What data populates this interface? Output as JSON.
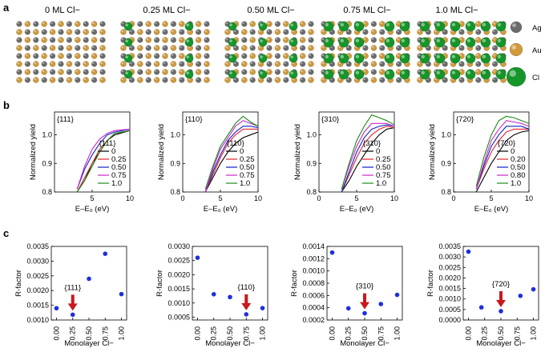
{
  "figure": {
    "panel_a_label": "a",
    "panel_b_label": "b",
    "panel_c_label": "c",
    "colors": {
      "ag": "#6b6b6b",
      "au": "#d09a3c",
      "cl": "#16952b",
      "marker": "#1f2fdc",
      "arrow": "#c8191e"
    }
  },
  "panel_a": {
    "models": [
      {
        "title": "0 ML Cl−",
        "coverage": 0.0
      },
      {
        "title": "0.25 ML Cl−",
        "coverage": 0.25
      },
      {
        "title": "0.50 ML Cl−",
        "coverage": 0.5
      },
      {
        "title": "0.75 ML Cl−",
        "coverage": 0.75
      },
      {
        "title": "1.0 ML Cl−",
        "coverage": 1.0
      }
    ],
    "legend": [
      {
        "label": "Ag",
        "icon": "ag-atom-icon"
      },
      {
        "label": "Au",
        "icon": "au-atom-icon"
      },
      {
        "label": "Cl",
        "icon": "cl-atom-icon"
      }
    ]
  },
  "chart_data": [
    {
      "type": "line",
      "panel": "b",
      "title": "{111}",
      "xlabel": "E–E₀ (eV)",
      "ylabel": "Normalized yield",
      "xlim": [
        0,
        10
      ],
      "ylim": [
        0.8,
        1.08
      ],
      "xticks": [
        5,
        10
      ],
      "yticks": [
        0.8,
        0.9,
        1.0
      ],
      "legend_title": "{111}",
      "series": [
        {
          "name": "0",
          "color": "#000000",
          "x": [
            3,
            4,
            5,
            6,
            7,
            8,
            10
          ],
          "y": [
            0.8,
            0.84,
            0.9,
            0.94,
            0.98,
            1.0,
            1.015
          ]
        },
        {
          "name": "0.25",
          "color": "#e0242c",
          "x": [
            3,
            4,
            5,
            6,
            7,
            8,
            10
          ],
          "y": [
            0.8,
            0.85,
            0.9,
            0.95,
            0.98,
            1.005,
            1.015
          ]
        },
        {
          "name": "0.50",
          "color": "#1020c8",
          "x": [
            3,
            4,
            5,
            6,
            7,
            8,
            10
          ],
          "y": [
            0.81,
            0.88,
            0.93,
            0.97,
            1.0,
            1.01,
            1.02
          ]
        },
        {
          "name": "0.75",
          "color": "#c828c8",
          "x": [
            3,
            4,
            5,
            6,
            7,
            8,
            10
          ],
          "y": [
            0.81,
            0.89,
            0.95,
            0.985,
            1.005,
            1.015,
            1.02
          ]
        },
        {
          "name": "1.0",
          "color": "#1a8a1a",
          "x": [
            3,
            4,
            5,
            6,
            7,
            8,
            10
          ],
          "y": [
            0.8,
            0.84,
            0.89,
            0.94,
            0.98,
            1.005,
            1.015
          ]
        }
      ]
    },
    {
      "type": "line",
      "panel": "b",
      "title": "{110}",
      "xlabel": "E–E₀ (eV)",
      "ylabel": "Normalized yield",
      "xlim": [
        0,
        10
      ],
      "ylim": [
        0.8,
        1.08
      ],
      "xticks": [
        0,
        5,
        10
      ],
      "yticks": [
        0.8,
        0.9,
        1.0
      ],
      "legend_title": "{110}",
      "series": [
        {
          "name": "0",
          "color": "#000000",
          "x": [
            3,
            4,
            5,
            6,
            7,
            8,
            9,
            10
          ],
          "y": [
            0.8,
            0.85,
            0.9,
            0.94,
            0.97,
            0.99,
            1.0,
            1.01
          ]
        },
        {
          "name": "0.25",
          "color": "#e0242c",
          "x": [
            3,
            4,
            5,
            6,
            7,
            8,
            9,
            10
          ],
          "y": [
            0.8,
            0.86,
            0.92,
            0.97,
            1.0,
            1.02,
            1.02,
            1.02
          ]
        },
        {
          "name": "0.50",
          "color": "#1020c8",
          "x": [
            3,
            4,
            5,
            6,
            7,
            8,
            9,
            10
          ],
          "y": [
            0.8,
            0.87,
            0.93,
            0.98,
            1.01,
            1.03,
            1.03,
            1.025
          ]
        },
        {
          "name": "0.75",
          "color": "#c828c8",
          "x": [
            3,
            4,
            5,
            6,
            7,
            8,
            9,
            10
          ],
          "y": [
            0.8,
            0.88,
            0.95,
            0.99,
            1.03,
            1.05,
            1.04,
            1.03
          ]
        },
        {
          "name": "1.0",
          "color": "#1a8a1a",
          "x": [
            3,
            4,
            5,
            6,
            7,
            8,
            9,
            10
          ],
          "y": [
            0.81,
            0.89,
            0.96,
            1.0,
            1.04,
            1.065,
            1.045,
            1.03
          ]
        }
      ]
    },
    {
      "type": "line",
      "panel": "b",
      "title": "{310}",
      "xlabel": "E–E₀ (eV)",
      "ylabel": "Normalized yield",
      "xlim": [
        0,
        10
      ],
      "ylim": [
        0.8,
        1.08
      ],
      "xticks": [
        0,
        5,
        10
      ],
      "yticks": [
        0.8,
        0.9,
        1.0
      ],
      "legend_title": "{310}",
      "series": [
        {
          "name": "0",
          "color": "#000000",
          "x": [
            3,
            4,
            5,
            6,
            7,
            8,
            9,
            10
          ],
          "y": [
            0.8,
            0.84,
            0.89,
            0.93,
            0.97,
            1.0,
            1.02,
            1.025
          ]
        },
        {
          "name": "0.25",
          "color": "#e0242c",
          "x": [
            3,
            4,
            5,
            6,
            7,
            8,
            9,
            10
          ],
          "y": [
            0.8,
            0.86,
            0.92,
            0.97,
            1.0,
            1.02,
            1.03,
            1.025
          ]
        },
        {
          "name": "0.50",
          "color": "#1020c8",
          "x": [
            3,
            4,
            5,
            6,
            7,
            8,
            9,
            10
          ],
          "y": [
            0.8,
            0.87,
            0.94,
            0.99,
            1.02,
            1.03,
            1.035,
            1.03
          ]
        },
        {
          "name": "0.75",
          "color": "#c828c8",
          "x": [
            3,
            4,
            5,
            6,
            7,
            8,
            9,
            10
          ],
          "y": [
            0.81,
            0.89,
            0.96,
            1.01,
            1.04,
            1.04,
            1.04,
            1.03
          ]
        },
        {
          "name": "1.0",
          "color": "#1a8a1a",
          "x": [
            3,
            4,
            5,
            6,
            7,
            8,
            9,
            10
          ],
          "y": [
            0.81,
            0.9,
            0.98,
            1.03,
            1.07,
            1.06,
            1.05,
            1.035
          ]
        }
      ]
    },
    {
      "type": "line",
      "panel": "b",
      "title": "{720}",
      "xlabel": "E–E₀ (eV)",
      "ylabel": "Normalized yield",
      "xlim": [
        0,
        10
      ],
      "ylim": [
        0.8,
        1.08
      ],
      "xticks": [
        0,
        5,
        10
      ],
      "yticks": [
        0.8,
        0.9,
        1.0
      ],
      "legend_title": "{720}",
      "series": [
        {
          "name": "0",
          "color": "#000000",
          "x": [
            3,
            4,
            5,
            6,
            7,
            8,
            9,
            10
          ],
          "y": [
            0.8,
            0.85,
            0.9,
            0.94,
            0.98,
            1.0,
            1.01,
            1.015
          ]
        },
        {
          "name": "0.20",
          "color": "#e0242c",
          "x": [
            3,
            4,
            5,
            6,
            7,
            8,
            9,
            10
          ],
          "y": [
            0.81,
            0.88,
            0.94,
            0.98,
            1.01,
            1.02,
            1.02,
            1.02
          ]
        },
        {
          "name": "0.50",
          "color": "#1020c8",
          "x": [
            3,
            4,
            5,
            6,
            7,
            8,
            9,
            10
          ],
          "y": [
            0.81,
            0.89,
            0.96,
            1.0,
            1.03,
            1.03,
            1.03,
            1.02
          ]
        },
        {
          "name": "0.80",
          "color": "#c828c8",
          "x": [
            3,
            4,
            5,
            6,
            7,
            8,
            9,
            10
          ],
          "y": [
            0.81,
            0.9,
            0.98,
            1.02,
            1.05,
            1.045,
            1.04,
            1.03
          ]
        },
        {
          "name": "1.0",
          "color": "#1a8a1a",
          "x": [
            3,
            4,
            5,
            6,
            7,
            8,
            9,
            10
          ],
          "y": [
            0.82,
            0.92,
            1.0,
            1.05,
            1.065,
            1.06,
            1.05,
            1.04
          ]
        }
      ]
    },
    {
      "type": "scatter",
      "panel": "c",
      "annotation": "{111}",
      "xlabel": "Monolayer Cl−",
      "ylabel": "R-factor",
      "xlim": [
        -0.08,
        1.08
      ],
      "ylim": [
        0.001,
        0.0035
      ],
      "xticks": [
        "0.00",
        "0.25",
        "0.50",
        "0.75",
        "1.00"
      ],
      "yticks": [
        "0.0010",
        "0.0015",
        "0.0020",
        "0.0025",
        "0.0030",
        "0.0035"
      ],
      "ytick_values": [
        0.001,
        0.0015,
        0.002,
        0.0025,
        0.003,
        0.0035
      ],
      "x": [
        0.0,
        0.25,
        0.5,
        0.75,
        1.0
      ],
      "y": [
        0.0014,
        0.00118,
        0.0024,
        0.00325,
        0.00188
      ],
      "arrow_at": 0.25
    },
    {
      "type": "scatter",
      "panel": "c",
      "annotation": "{110}",
      "xlabel": "Monolayer Cl−",
      "ylabel": "R-factor",
      "xlim": [
        -0.08,
        1.08
      ],
      "ylim": [
        0.0004,
        0.003
      ],
      "xticks": [
        "0.00",
        "0.25",
        "0.50",
        "0.75",
        "1.00"
      ],
      "yticks": [
        "0.0005",
        "0.0010",
        "0.0015",
        "0.0020",
        "0.0025",
        "0.0030"
      ],
      "ytick_values": [
        0.0005,
        0.001,
        0.0015,
        0.002,
        0.0025,
        0.003
      ],
      "x": [
        0.0,
        0.25,
        0.5,
        0.75,
        1.0
      ],
      "y": [
        0.0026,
        0.00131,
        0.00121,
        0.0006,
        0.00082
      ],
      "arrow_at": 0.75
    },
    {
      "type": "scatter",
      "panel": "c",
      "annotation": "{310}",
      "xlabel": "Monolayer Cl−",
      "ylabel": "R-factor",
      "xlim": [
        -0.08,
        1.08
      ],
      "ylim": [
        0.0002,
        0.0014
      ],
      "xticks": [
        "0.00",
        "0.25",
        "0.50",
        "0.75",
        "1.00"
      ],
      "yticks": [
        "0.0002",
        "0.0004",
        "0.0006",
        "0.0008",
        "0.0010",
        "0.0012",
        "0.0014"
      ],
      "ytick_values": [
        0.0002,
        0.0004,
        0.0006,
        0.0008,
        0.001,
        0.0012,
        0.0014
      ],
      "x": [
        0.0,
        0.25,
        0.5,
        0.75,
        1.0
      ],
      "y": [
        0.0013,
        0.00039,
        0.00031,
        0.00046,
        0.00061
      ],
      "arrow_at": 0.5
    },
    {
      "type": "scatter",
      "panel": "c",
      "annotation": "{720}",
      "xlabel": "Monolayer Cl−",
      "ylabel": "R-factor",
      "xlim": [
        -0.08,
        1.08
      ],
      "ylim": [
        0.0,
        0.0035
      ],
      "xticks": [
        "0.00",
        "0.25",
        "0.50",
        "0.75",
        "1.00"
      ],
      "yticks": [
        "0.0000",
        "0.0005",
        "0.0010",
        "0.0015",
        "0.0020",
        "0.0025",
        "0.0030",
        "0.0035"
      ],
      "ytick_values": [
        0.0,
        0.0005,
        0.001,
        0.0015,
        0.002,
        0.0025,
        0.003,
        0.0035
      ],
      "x": [
        0.0,
        0.2,
        0.5,
        0.8,
        1.0
      ],
      "y": [
        0.00325,
        0.0006,
        0.00042,
        0.00115,
        0.00146
      ],
      "arrow_at": 0.5
    }
  ]
}
